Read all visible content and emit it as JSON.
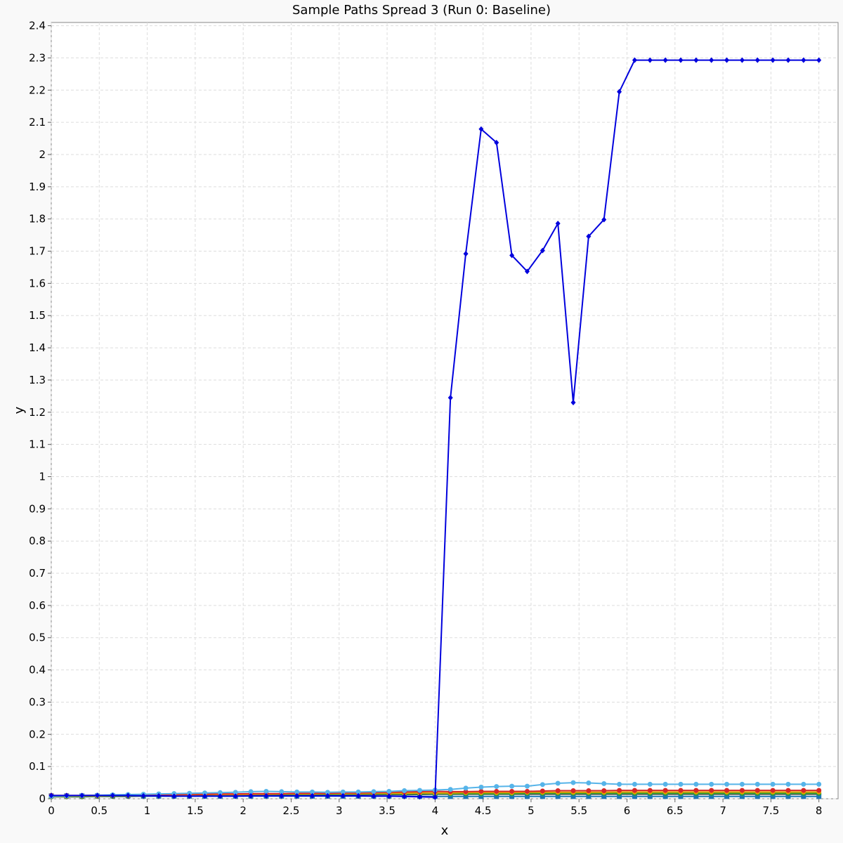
{
  "chart_data": {
    "type": "line",
    "title": "Sample Paths Spread 3 (Run 0: Baseline)",
    "xlabel": "x",
    "ylabel": "y",
    "xlim": [
      0,
      8.2
    ],
    "ylim": [
      0,
      2.41
    ],
    "x_ticks": [
      "0",
      "0.5",
      "1",
      "1.5",
      "2",
      "2.5",
      "3",
      "3.5",
      "4",
      "4.5",
      "5",
      "5.5",
      "6",
      "6.5",
      "7",
      "7.5",
      "8"
    ],
    "y_ticks": [
      "0",
      "0.1",
      "0.2",
      "0.3",
      "0.4",
      "0.5",
      "0.6",
      "0.7",
      "0.8",
      "0.9",
      "1",
      "1.1",
      "1.2",
      "1.3",
      "1.4",
      "1.5",
      "1.6",
      "1.7",
      "1.8",
      "1.9",
      "2",
      "2.1",
      "2.2",
      "2.3",
      "2.4"
    ],
    "grid": true,
    "x": [
      0,
      0.16,
      0.32,
      0.48,
      0.64,
      0.8,
      0.96,
      1.12,
      1.28,
      1.44,
      1.6,
      1.76,
      1.92,
      2.08,
      2.24,
      2.4,
      2.56,
      2.72,
      2.88,
      3.04,
      3.2,
      3.36,
      3.52,
      3.68,
      3.84,
      4,
      4.16,
      4.32,
      4.48,
      4.64,
      4.8,
      4.96,
      5.12,
      5.28,
      5.44,
      5.6,
      5.76,
      5.92,
      6.08,
      6.24,
      6.4,
      6.56,
      6.72,
      6.88,
      7.04,
      7.2,
      7.36,
      7.52,
      7.68,
      7.84,
      8
    ],
    "series": [
      {
        "color": "#0000dd",
        "marker": "diamond",
        "values": [
          0.01,
          0.01,
          0.01,
          0.01,
          0.01,
          0.01,
          0.009,
          0.009,
          0.008,
          0.008,
          0.008,
          0.008,
          0.008,
          0.009,
          0.009,
          0.009,
          0.009,
          0.009,
          0.009,
          0.009,
          0.009,
          0.008,
          0.008,
          0.007,
          0.006,
          0.005,
          1.245,
          1.692,
          2.079,
          2.037,
          1.687,
          1.637,
          1.702,
          1.786,
          1.23,
          1.746,
          1.798,
          2.195,
          2.293,
          2.293,
          2.293,
          2.293,
          2.293,
          2.293,
          2.293,
          2.293,
          2.293,
          2.293,
          2.293,
          2.293,
          2.293
        ]
      },
      {
        "color": "#56b4e9",
        "marker": "circle",
        "values": [
          0.008,
          0.009,
          0.01,
          0.011,
          0.012,
          0.013,
          0.014,
          0.015,
          0.016,
          0.017,
          0.018,
          0.019,
          0.02,
          0.022,
          0.023,
          0.022,
          0.021,
          0.021,
          0.02,
          0.021,
          0.021,
          0.022,
          0.023,
          0.025,
          0.026,
          0.027,
          0.029,
          0.033,
          0.036,
          0.038,
          0.039,
          0.039,
          0.044,
          0.048,
          0.05,
          0.049,
          0.047,
          0.045,
          0.045,
          0.045,
          0.045,
          0.045,
          0.045,
          0.045,
          0.045,
          0.045,
          0.045,
          0.045,
          0.045,
          0.045,
          0.045
        ]
      },
      {
        "color": "#d62728",
        "marker": "circle",
        "values": [
          0.01,
          0.01,
          0.01,
          0.011,
          0.011,
          0.012,
          0.012,
          0.013,
          0.013,
          0.014,
          0.014,
          0.015,
          0.015,
          0.016,
          0.016,
          0.016,
          0.017,
          0.017,
          0.017,
          0.018,
          0.018,
          0.019,
          0.02,
          0.021,
          0.022,
          0.023,
          0.022,
          0.022,
          0.023,
          0.023,
          0.023,
          0.023,
          0.024,
          0.025,
          0.025,
          0.025,
          0.025,
          0.026,
          0.026,
          0.026,
          0.026,
          0.026,
          0.026,
          0.026,
          0.026,
          0.026,
          0.026,
          0.026,
          0.026,
          0.026,
          0.026
        ]
      },
      {
        "color": "#e69f00",
        "marker": "circle",
        "values": [
          0.008,
          0.008,
          0.009,
          0.009,
          0.01,
          0.01,
          0.011,
          0.011,
          0.012,
          0.012,
          0.013,
          0.013,
          0.013,
          0.014,
          0.014,
          0.015,
          0.015,
          0.015,
          0.016,
          0.016,
          0.016,
          0.017,
          0.017,
          0.017,
          0.018,
          0.018,
          0.018,
          0.019,
          0.019,
          0.019,
          0.019,
          0.02,
          0.02,
          0.02,
          0.02,
          0.02,
          0.02,
          0.021,
          0.021,
          0.021,
          0.021,
          0.021,
          0.021,
          0.021,
          0.021,
          0.021,
          0.021,
          0.021,
          0.021,
          0.021,
          0.021
        ]
      },
      {
        "color": "#2ca02c",
        "marker": "circle",
        "values": [
          0.007,
          0.007,
          0.007,
          0.008,
          0.008,
          0.009,
          0.009,
          0.01,
          0.01,
          0.011,
          0.011,
          0.012,
          0.012,
          0.012,
          0.013,
          0.013,
          0.013,
          0.014,
          0.014,
          0.014,
          0.015,
          0.015,
          0.015,
          0.015,
          0.016,
          0.016,
          0.016,
          0.016,
          0.016,
          0.016,
          0.016,
          0.017,
          0.017,
          0.017,
          0.017,
          0.017,
          0.017,
          0.017,
          0.017,
          0.017,
          0.017,
          0.017,
          0.017,
          0.017,
          0.017,
          0.017,
          0.017,
          0.017,
          0.017,
          0.017,
          0.017
        ]
      },
      {
        "color": "#1f77b4",
        "marker": "square",
        "values": [
          0.009,
          0.009,
          0.009,
          0.009,
          0.009,
          0.009,
          0.008,
          0.008,
          0.008,
          0.008,
          0.008,
          0.008,
          0.008,
          0.008,
          0.008,
          0.008,
          0.008,
          0.008,
          0.008,
          0.008,
          0.008,
          0.008,
          0.008,
          0.008,
          0.007,
          0.007,
          0.007,
          0.007,
          0.007,
          0.007,
          0.007,
          0.007,
          0.007,
          0.007,
          0.007,
          0.007,
          0.007,
          0.007,
          0.007,
          0.007,
          0.007,
          0.007,
          0.007,
          0.007,
          0.007,
          0.007,
          0.007,
          0.007,
          0.007,
          0.007,
          0.007
        ]
      },
      {
        "color": "#555555",
        "marker": "circle",
        "values": [
          0.006,
          0.006,
          0.006,
          0.007,
          0.007,
          0.007,
          0.008,
          0.008,
          0.008,
          0.009,
          0.009,
          0.01,
          0.01,
          0.01,
          0.011,
          0.011,
          0.011,
          0.012,
          0.012,
          0.012,
          0.013,
          0.013,
          0.013,
          0.013,
          0.013,
          0.014,
          0.014,
          0.014,
          0.014,
          0.014,
          0.014,
          0.014,
          0.014,
          0.014,
          0.014,
          0.014,
          0.014,
          0.014,
          0.014,
          0.014,
          0.014,
          0.014,
          0.014,
          0.014,
          0.014,
          0.014,
          0.014,
          0.014,
          0.014,
          0.014,
          0.014
        ]
      }
    ]
  }
}
